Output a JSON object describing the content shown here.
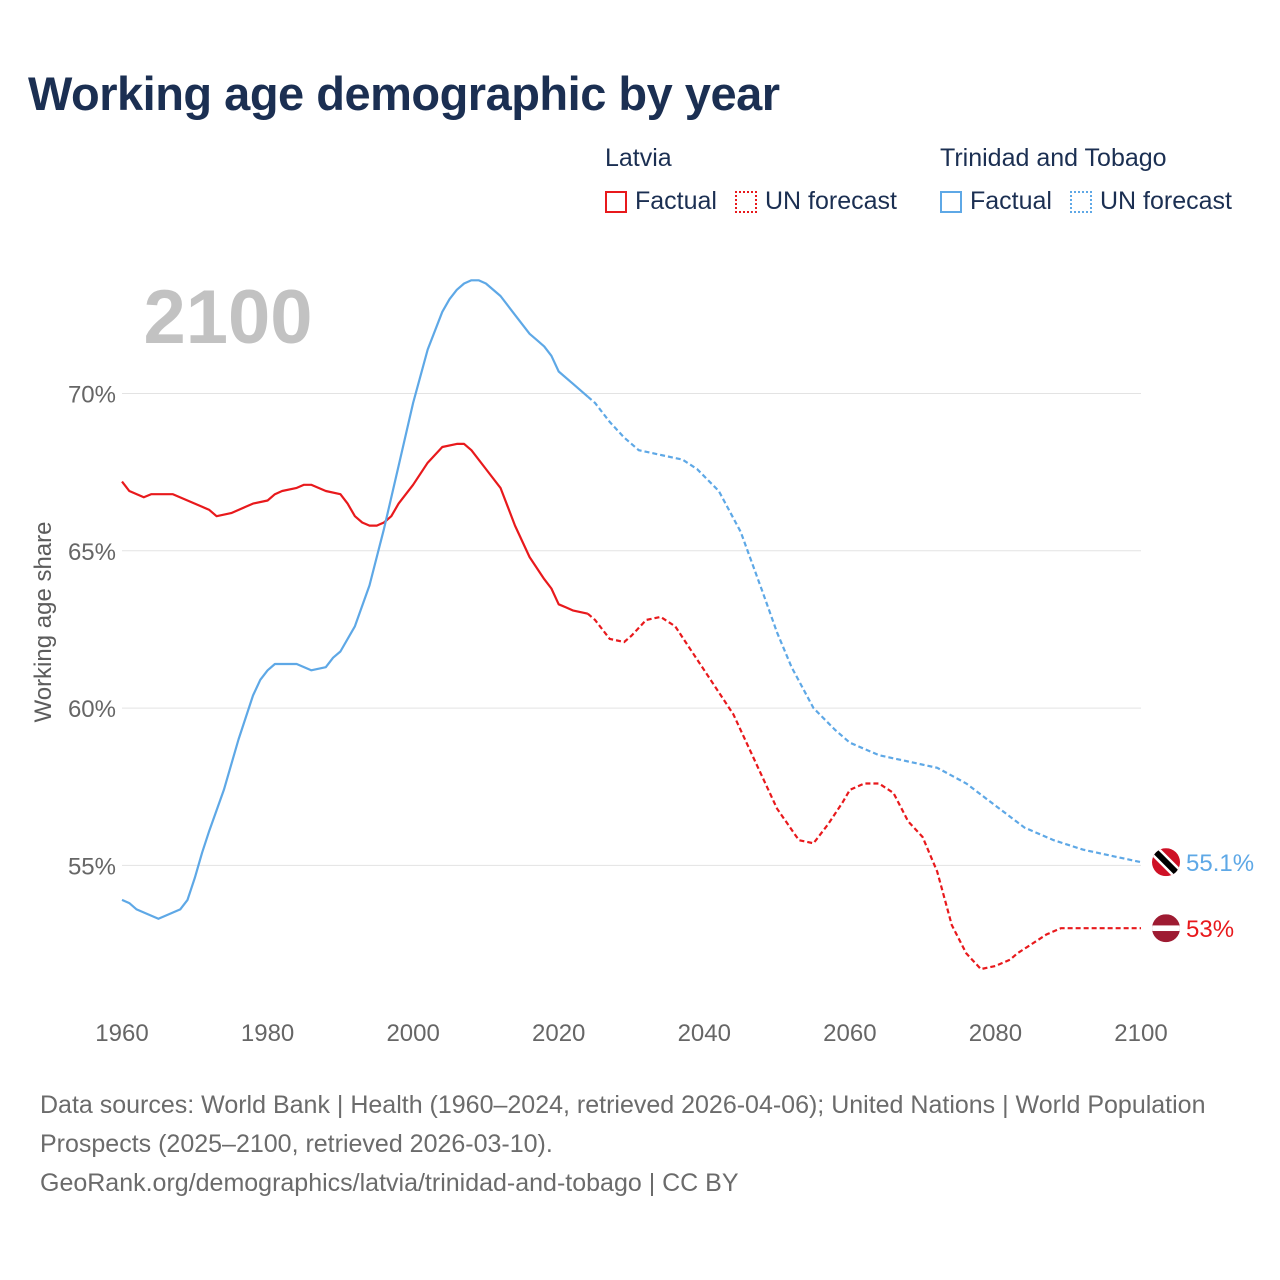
{
  "title": "Working age demographic by year",
  "legend": {
    "latvia": {
      "country": "Latvia",
      "factual": "Factual",
      "forecast": "UN forecast",
      "color": "#e8191c"
    },
    "tt": {
      "country": "Trinidad and Tobago",
      "factual": "Factual",
      "forecast": "UN forecast",
      "color": "#5ea8e6"
    }
  },
  "chart_data": {
    "type": "line",
    "year_watermark": "2100",
    "ylabel": "Working age share",
    "xlim": [
      1960,
      2100
    ],
    "ylim": [
      50.4,
      75.2
    ],
    "x_ticks": [
      1960,
      1980,
      2000,
      2020,
      2040,
      2060,
      2080,
      2100
    ],
    "x_tick_labels": [
      "1960",
      "1980",
      "2000",
      "2020",
      "2040",
      "2060",
      "2080",
      "2100"
    ],
    "y_ticks": [
      55,
      60,
      65,
      70
    ],
    "y_tick_labels": [
      "55%",
      "60%",
      "65%",
      "70%"
    ],
    "forecast_start": 2024,
    "series": [
      {
        "name": "Latvia",
        "color": "#e8191c",
        "end_label": "53%",
        "x": [
          1960,
          1961,
          1963,
          1964,
          1966,
          1967,
          1969,
          1970,
          1971,
          1972,
          1973,
          1975,
          1977,
          1978,
          1980,
          1981,
          1982,
          1984,
          1985,
          1986,
          1987,
          1988,
          1990,
          1991,
          1992,
          1993,
          1994,
          1995,
          1996,
          1997,
          1998,
          2000,
          2002,
          2004,
          2006,
          2007,
          2008,
          2010,
          2012,
          2013,
          2014,
          2016,
          2018,
          2019,
          2020,
          2021,
          2022,
          2024,
          2025,
          2027,
          2029,
          2030,
          2032,
          2034,
          2036,
          2038,
          2040,
          2044,
          2047,
          2050,
          2053,
          2055,
          2057,
          2059,
          2060,
          2062,
          2064,
          2066,
          2068,
          2070,
          2072,
          2074,
          2076,
          2078,
          2080,
          2082,
          2083,
          2085,
          2087,
          2089,
          2091,
          2093,
          2095,
          2097,
          2099,
          2100
        ],
        "values": [
          67.2,
          66.9,
          66.7,
          66.8,
          66.8,
          66.8,
          66.6,
          66.5,
          66.4,
          66.3,
          66.1,
          66.2,
          66.4,
          66.5,
          66.6,
          66.8,
          66.9,
          67.0,
          67.1,
          67.1,
          67.0,
          66.9,
          66.8,
          66.5,
          66.1,
          65.9,
          65.8,
          65.8,
          65.9,
          66.1,
          66.5,
          67.1,
          67.8,
          68.3,
          68.4,
          68.4,
          68.2,
          67.6,
          67.0,
          66.4,
          65.8,
          64.8,
          64.1,
          63.8,
          63.3,
          63.2,
          63.1,
          63.0,
          62.8,
          62.2,
          62.1,
          62.3,
          62.8,
          62.9,
          62.6,
          61.9,
          61.2,
          59.8,
          58.3,
          56.8,
          55.8,
          55.7,
          56.3,
          57.0,
          57.4,
          57.6,
          57.6,
          57.3,
          56.4,
          55.9,
          54.8,
          53.1,
          52.2,
          51.7,
          51.8,
          52.0,
          52.2,
          52.5,
          52.8,
          53.0,
          53.0,
          53.0,
          53.0,
          53.0,
          53.0,
          53.0
        ]
      },
      {
        "name": "Trinidad and Tobago",
        "color": "#5ea8e6",
        "end_label": "55.1%",
        "x": [
          1960,
          1961,
          1962,
          1964,
          1965,
          1966,
          1968,
          1969,
          1970,
          1971,
          1972,
          1974,
          1976,
          1978,
          1979,
          1980,
          1981,
          1982,
          1984,
          1986,
          1988,
          1989,
          1990,
          1992,
          1994,
          1996,
          1998,
          2000,
          2002,
          2004,
          2005,
          2006,
          2007,
          2008,
          2009,
          2010,
          2012,
          2014,
          2016,
          2017,
          2018,
          2019,
          2020,
          2022,
          2024,
          2025,
          2027,
          2029,
          2031,
          2033,
          2035,
          2037,
          2039,
          2042,
          2045,
          2048,
          2050,
          2052,
          2055,
          2058,
          2060,
          2064,
          2068,
          2072,
          2076,
          2080,
          2084,
          2088,
          2092,
          2096,
          2100
        ],
        "values": [
          53.9,
          53.8,
          53.6,
          53.4,
          53.3,
          53.4,
          53.6,
          53.9,
          54.6,
          55.4,
          56.1,
          57.4,
          59.0,
          60.4,
          60.9,
          61.2,
          61.4,
          61.4,
          61.4,
          61.2,
          61.3,
          61.6,
          61.8,
          62.6,
          63.9,
          65.7,
          67.7,
          69.7,
          71.4,
          72.6,
          73.0,
          73.3,
          73.5,
          73.6,
          73.6,
          73.5,
          73.1,
          72.5,
          71.9,
          71.7,
          71.5,
          71.2,
          70.7,
          70.3,
          69.9,
          69.7,
          69.1,
          68.6,
          68.2,
          68.1,
          68.0,
          67.9,
          67.6,
          66.9,
          65.6,
          63.7,
          62.4,
          61.3,
          60.0,
          59.3,
          58.9,
          58.5,
          58.3,
          58.1,
          57.6,
          56.9,
          56.2,
          55.8,
          55.5,
          55.3,
          55.1
        ]
      }
    ],
    "end_markers": [
      "latvia-flag-icon",
      "trinidad-flag-icon"
    ]
  },
  "source": {
    "line1": "Data sources: World Bank | Health (1960–2024, retrieved 2026-04-06); United Nations | World Population Prospects (2025–2100, retrieved 2026-03-10).",
    "line2": "GeoRank.org/demographics/latvia/trinidad-and-tobago | CC BY"
  }
}
